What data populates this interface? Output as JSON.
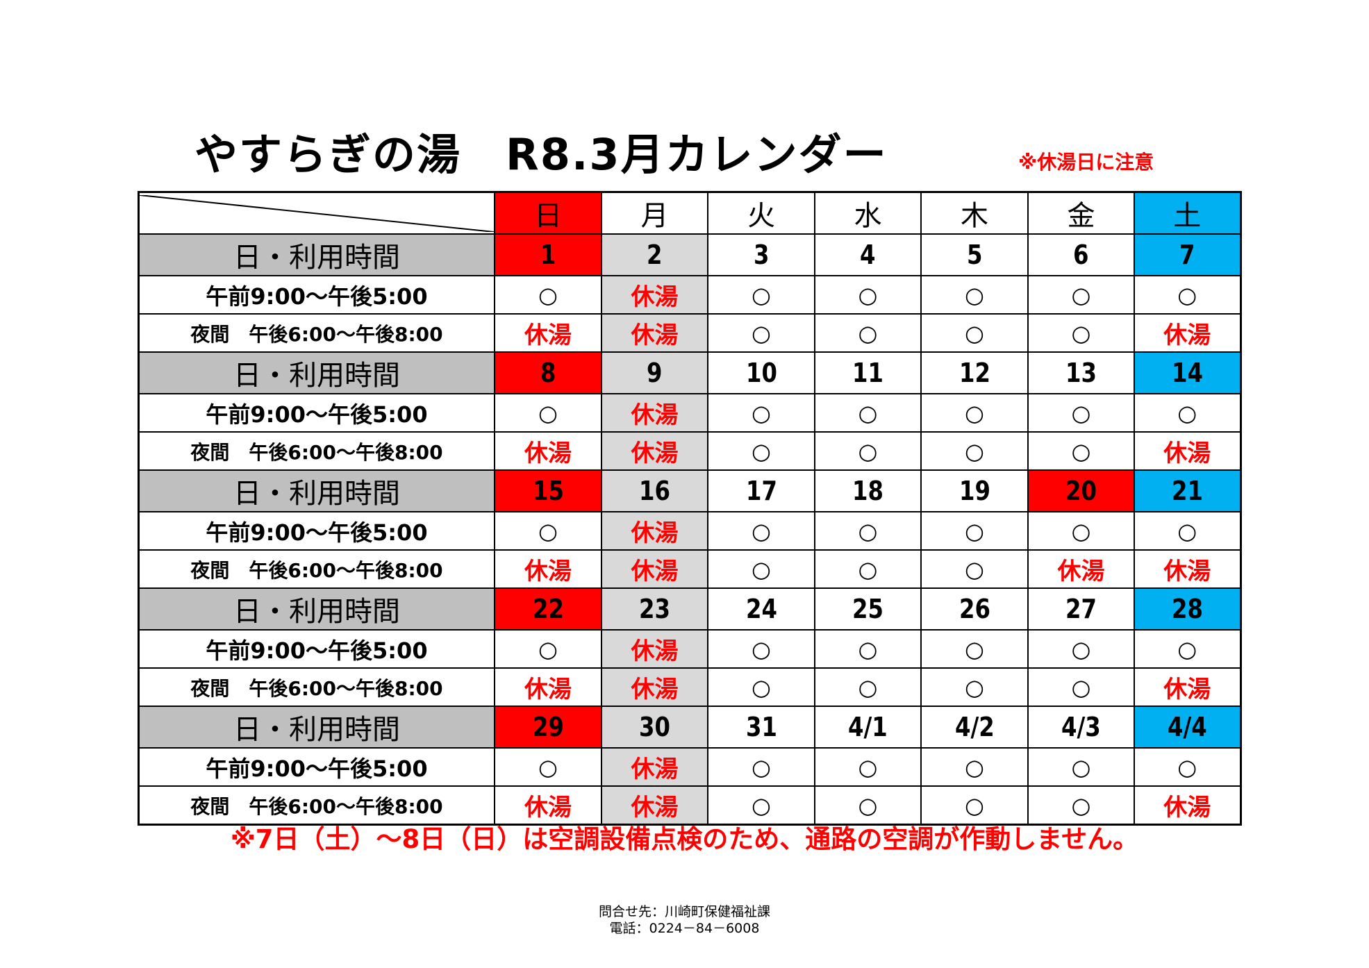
{
  "header": {
    "title": "やすらぎの湯　R8.3月カレンダー",
    "note": "※休湯日に注意"
  },
  "table": {
    "days": [
      "日",
      "月",
      "火",
      "水",
      "木",
      "金",
      "土"
    ],
    "day_bg": [
      "#ff0000",
      null,
      null,
      null,
      null,
      null,
      "#00b0f0"
    ],
    "monday_bg": "#d9d9d9",
    "label_bg": "#bfbfbf",
    "closed_label": "休湯",
    "closed_color": "#ff0000",
    "row_labels": {
      "date": "日・利用時間",
      "day": "午前9:00～午後5:00",
      "night": "夜間　午後6:00～午後8:00"
    },
    "weeks": [
      {
        "dates": [
          "1",
          "2",
          "3",
          "4",
          "5",
          "6",
          "7"
        ],
        "date_bg": [
          "#ff0000",
          "#d9d9d9",
          null,
          null,
          null,
          null,
          "#00b0f0"
        ],
        "day": [
          "○",
          "休湯",
          "○",
          "○",
          "○",
          "○",
          "○"
        ],
        "night": [
          "休湯",
          "休湯",
          "○",
          "○",
          "○",
          "○",
          "休湯"
        ]
      },
      {
        "dates": [
          "8",
          "9",
          "10",
          "11",
          "12",
          "13",
          "14"
        ],
        "date_bg": [
          "#ff0000",
          "#d9d9d9",
          null,
          null,
          null,
          null,
          "#00b0f0"
        ],
        "day": [
          "○",
          "休湯",
          "○",
          "○",
          "○",
          "○",
          "○"
        ],
        "night": [
          "休湯",
          "休湯",
          "○",
          "○",
          "○",
          "○",
          "休湯"
        ]
      },
      {
        "dates": [
          "15",
          "16",
          "17",
          "18",
          "19",
          "20",
          "21"
        ],
        "date_bg": [
          "#ff0000",
          "#d9d9d9",
          null,
          null,
          null,
          "#ff0000",
          "#00b0f0"
        ],
        "day": [
          "○",
          "休湯",
          "○",
          "○",
          "○",
          "○",
          "○"
        ],
        "night": [
          "休湯",
          "休湯",
          "○",
          "○",
          "○",
          "休湯",
          "休湯"
        ]
      },
      {
        "dates": [
          "22",
          "23",
          "24",
          "25",
          "26",
          "27",
          "28"
        ],
        "date_bg": [
          "#ff0000",
          "#d9d9d9",
          null,
          null,
          null,
          null,
          "#00b0f0"
        ],
        "day": [
          "○",
          "休湯",
          "○",
          "○",
          "○",
          "○",
          "○"
        ],
        "night": [
          "休湯",
          "休湯",
          "○",
          "○",
          "○",
          "○",
          "休湯"
        ]
      },
      {
        "dates": [
          "29",
          "30",
          "31",
          "4/1",
          "4/2",
          "4/3",
          "4/4"
        ],
        "date_bg": [
          "#ff0000",
          "#d9d9d9",
          null,
          null,
          null,
          null,
          "#00b0f0"
        ],
        "day": [
          "○",
          "休湯",
          "○",
          "○",
          "○",
          "○",
          "○"
        ],
        "night": [
          "休湯",
          "休湯",
          "○",
          "○",
          "○",
          "○",
          "休湯"
        ]
      }
    ]
  },
  "notice": "※7日（土）～8日（日）は空調設備点検のため、通路の空調が作動しません。",
  "contact": [
    "問合せ先：川崎町保健福祉課",
    "電話：0224－84－6008"
  ]
}
